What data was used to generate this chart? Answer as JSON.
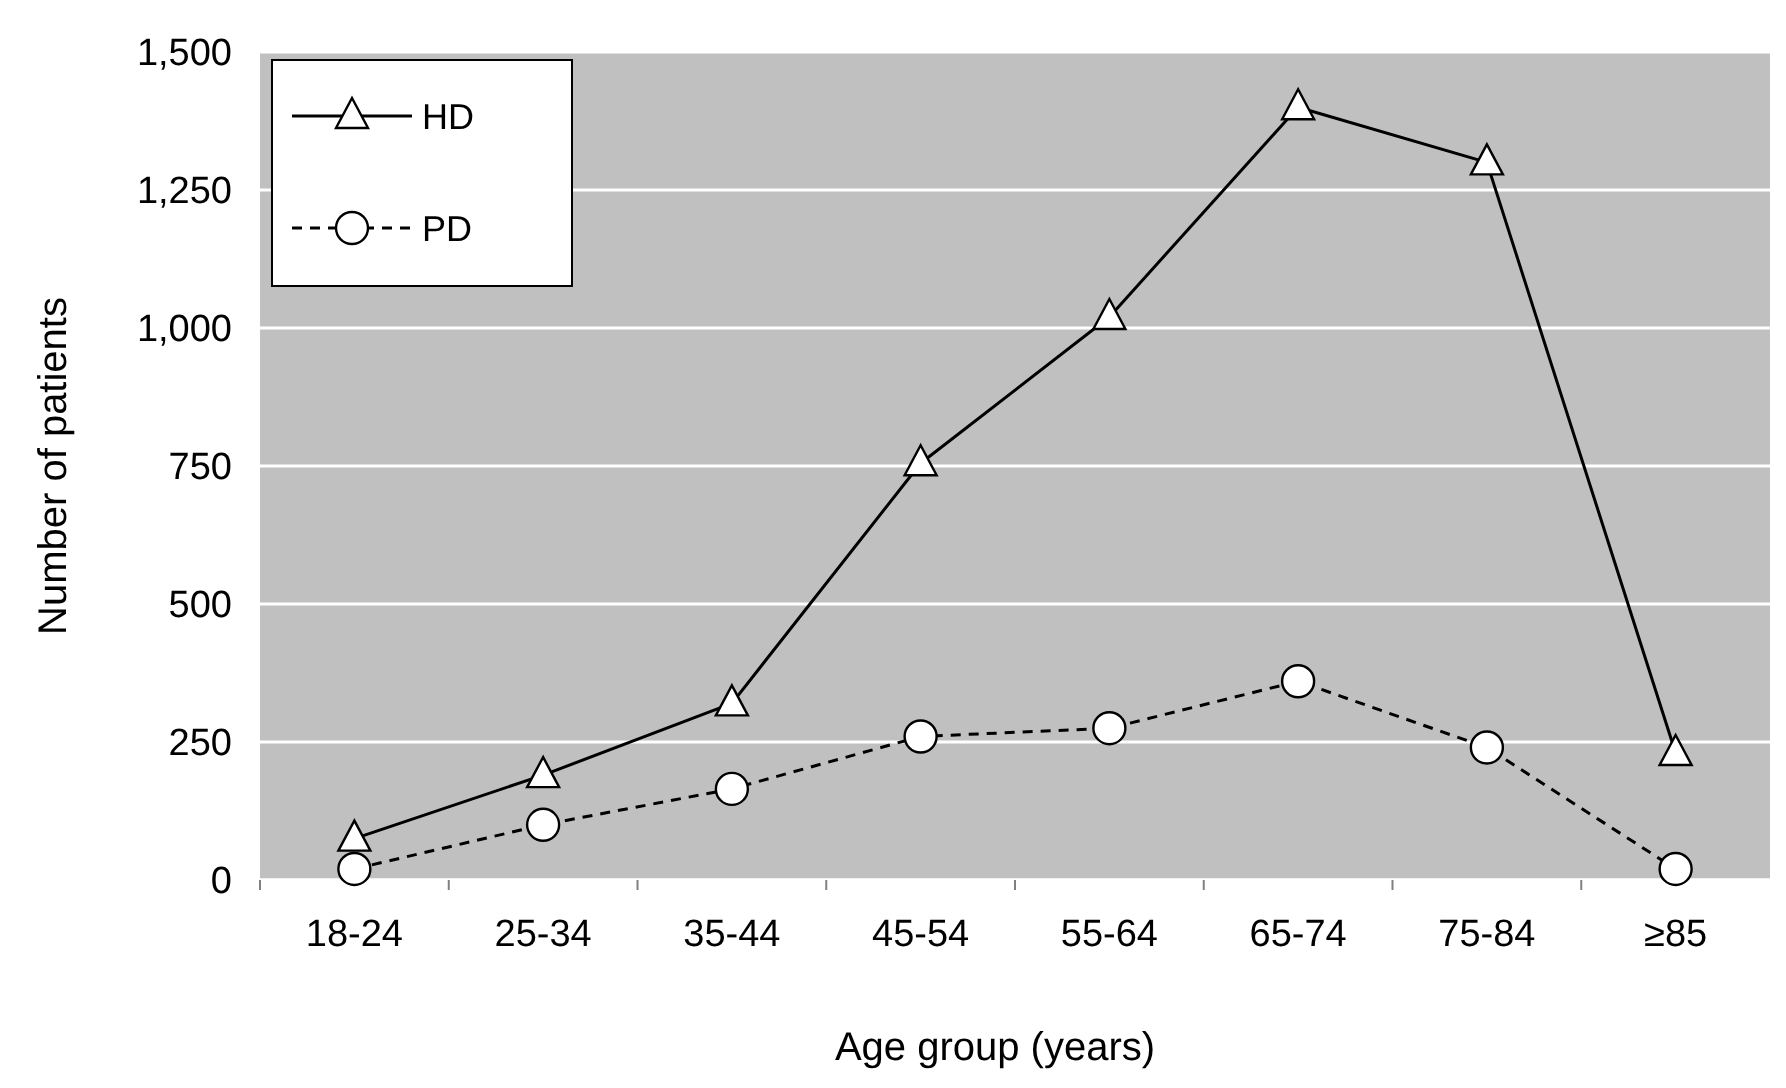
{
  "chart_data": {
    "type": "line",
    "xlabel": "Age group (years)",
    "ylabel": "Number of patients",
    "categories": [
      "18-24",
      "25-34",
      "35-44",
      "45-54",
      "55-64",
      "65-74",
      "75-84",
      "≥85"
    ],
    "series": [
      {
        "name": "HD",
        "color": "#000000",
        "marker": "triangle",
        "line_style": "solid",
        "values": [
          75,
          190,
          320,
          755,
          1020,
          1400,
          1300,
          230
        ]
      },
      {
        "name": "PD",
        "color": "#000000",
        "marker": "circle",
        "line_style": "dashed",
        "values": [
          20,
          100,
          165,
          260,
          275,
          360,
          240,
          20
        ]
      }
    ],
    "ylim": [
      0,
      1500
    ],
    "yticks": [
      0,
      250,
      500,
      750,
      {
        "value": 1000,
        "label": "1,000"
      },
      {
        "value": 1250,
        "label": "1,250"
      },
      {
        "value": 1500,
        "label": "1,500"
      }
    ],
    "grid": "y",
    "legend": "top left"
  }
}
